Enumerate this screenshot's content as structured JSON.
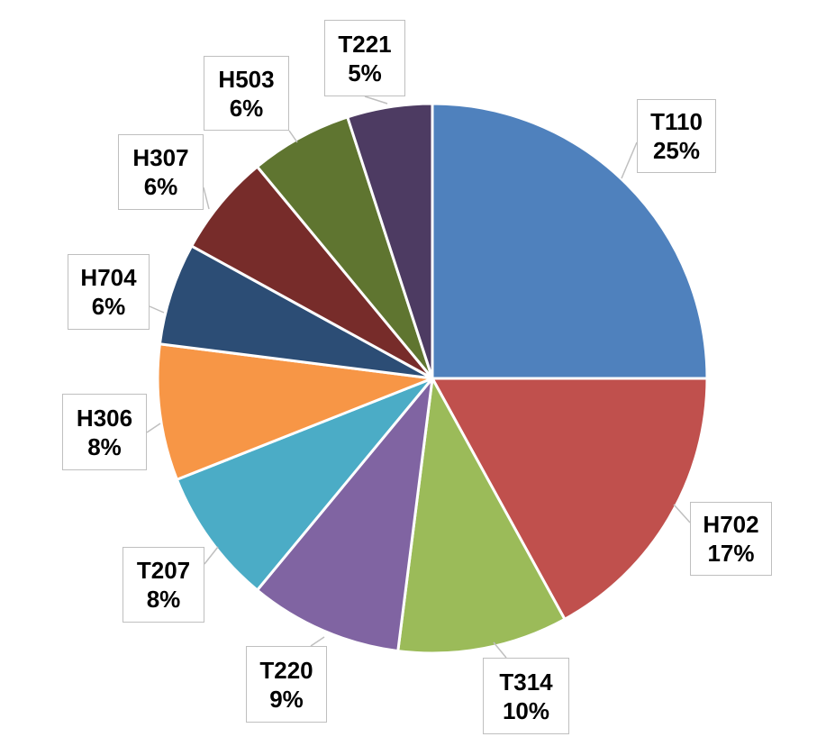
{
  "chart_data": {
    "type": "pie",
    "title": "",
    "slices": [
      {
        "label": "T110",
        "value": 25,
        "value_label": "25%",
        "color": "#4F81BD"
      },
      {
        "label": "H702",
        "value": 17,
        "value_label": "17%",
        "color": "#C0504D"
      },
      {
        "label": "T314",
        "value": 10,
        "value_label": "10%",
        "color": "#9BBB59"
      },
      {
        "label": "T220",
        "value": 9,
        "value_label": "9%",
        "color": "#8064A2"
      },
      {
        "label": "T207",
        "value": 8,
        "value_label": "8%",
        "color": "#4BACC6"
      },
      {
        "label": "H306",
        "value": 8,
        "value_label": "8%",
        "color": "#F79646"
      },
      {
        "label": "H704",
        "value": 6,
        "value_label": "6%",
        "color": "#2C4D75"
      },
      {
        "label": "H307",
        "value": 6,
        "value_label": "6%",
        "color": "#772C2A"
      },
      {
        "label": "H503",
        "value": 6,
        "value_label": "6%",
        "color": "#5F7530"
      },
      {
        "label": "T221",
        "value": 5,
        "value_label": "5%",
        "color": "#4D3B62"
      }
    ],
    "start": "12 o'clock",
    "direction": "clockwise",
    "data_labels": "callouts with category name and percentage",
    "legend": "none"
  }
}
